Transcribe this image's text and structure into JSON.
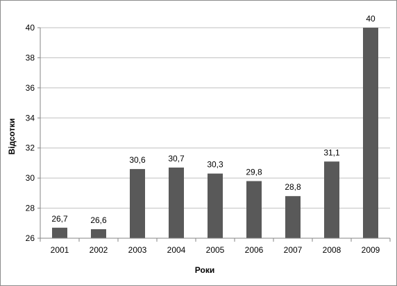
{
  "chart_data": {
    "type": "bar",
    "title": "",
    "xlabel": "Роки",
    "ylabel": "Відсотки",
    "categories": [
      "2001",
      "2002",
      "2003",
      "2004",
      "2005",
      "2006",
      "2007",
      "2008",
      "2009"
    ],
    "values": [
      26.7,
      26.6,
      30.6,
      30.7,
      30.3,
      29.8,
      28.8,
      31.1,
      40
    ],
    "data_labels": [
      "26,7",
      "26,6",
      "30,6",
      "30,7",
      "30,3",
      "29,8",
      "28,8",
      "31,1",
      "40"
    ],
    "ylim": [
      26,
      40
    ],
    "yticks": [
      26,
      28,
      30,
      32,
      34,
      36,
      38,
      40
    ],
    "grid": true,
    "legend": "none",
    "colors": {
      "bar": "#595959",
      "grid": "#bfbfbf",
      "axis": "#868686"
    }
  }
}
